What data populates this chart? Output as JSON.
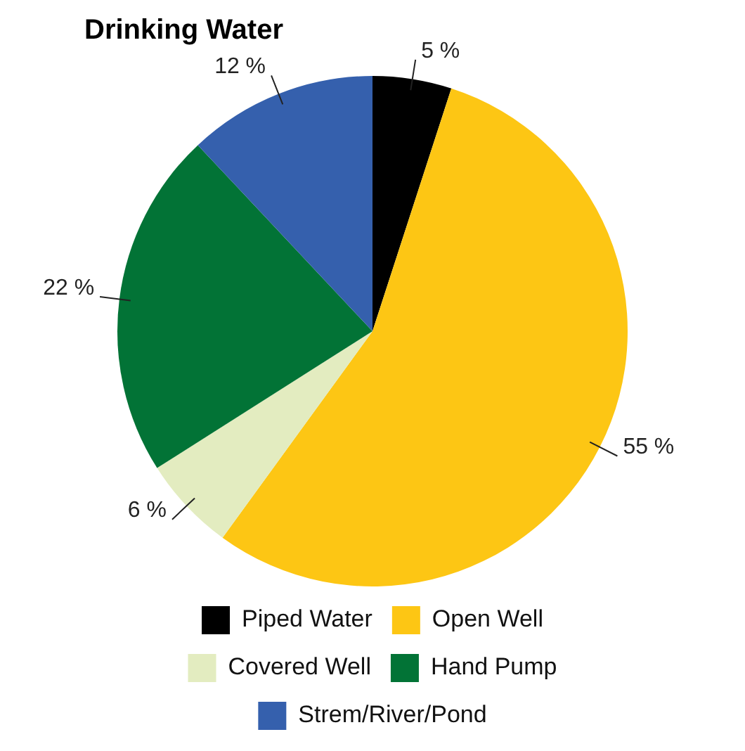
{
  "chart_data": {
    "type": "pie",
    "title": "Drinking Water",
    "categories": [
      "Piped Water",
      "Open Well",
      "Covered Well",
      "Hand Pump",
      "Strem/River/Pond"
    ],
    "values": [
      5,
      55,
      6,
      22,
      12
    ],
    "colors": [
      "#000000",
      "#fdc614",
      "#e3ecc0",
      "#027336",
      "#3560ad"
    ],
    "value_labels": [
      "5 %",
      "55 %",
      "6 %",
      "22 %",
      "12 %"
    ],
    "legend": "bottom"
  }
}
